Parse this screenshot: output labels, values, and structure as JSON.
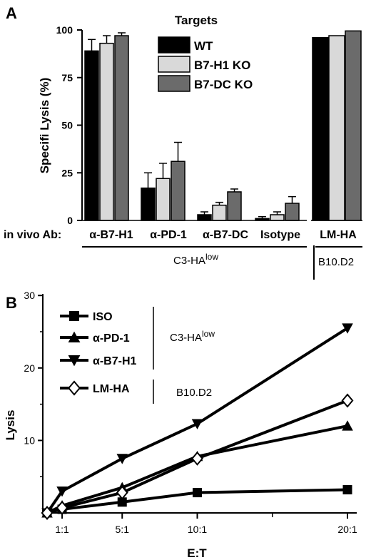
{
  "chart_data": [
    {
      "type": "bar",
      "panel_label": "A",
      "ylabel": "Specifi Lysis (%)",
      "yticks": [
        0,
        25,
        50,
        75,
        100
      ],
      "ylim": [
        0,
        100
      ],
      "legend_title": "Targets",
      "legend_placement": "top-center",
      "groups_prefix": "in vivo Ab:",
      "series": [
        {
          "name": "WT",
          "color": "#000000"
        },
        {
          "name": "B7-H1 KO",
          "color": "#d9d9d9"
        },
        {
          "name": "B7-DC KO",
          "color": "#6b6b6b"
        }
      ],
      "categories": [
        "α-B7-H1",
        "α-PD-1",
        "α-B7-DC",
        "Isotype"
      ],
      "values": [
        [
          89,
          93,
          97
        ],
        [
          17,
          22,
          31
        ],
        [
          3,
          8,
          15
        ],
        [
          1,
          3,
          9
        ]
      ],
      "errors": [
        [
          6,
          4,
          1.5
        ],
        [
          8,
          8,
          10
        ],
        [
          1.5,
          1.5,
          1.5
        ],
        [
          1,
          1.5,
          3.5
        ]
      ],
      "group_label": {
        "base": "C3-HA",
        "sup": "low"
      },
      "right_panel": {
        "category": "LM-HA",
        "values": [
          96,
          97,
          99.5
        ],
        "group_label": "B10.D2"
      }
    },
    {
      "type": "line",
      "panel_label": "B",
      "xlabel": "E:T",
      "ylabel": "Lysis",
      "xtick_labels": [
        "1:1",
        "5:1",
        "10:1",
        "20:1"
      ],
      "xticks": [
        1,
        5,
        10,
        20
      ],
      "yticks": [
        10,
        20,
        30
      ],
      "ylim": [
        0,
        30
      ],
      "x": [
        0,
        1,
        5,
        10,
        20
      ],
      "series": [
        {
          "name": "ISO",
          "marker": "square",
          "values": [
            0,
            0.5,
            1.5,
            2.8,
            3.2
          ]
        },
        {
          "name": "α-PD-1",
          "marker": "triangle-up",
          "values": [
            0,
            1,
            3.5,
            7.8,
            12
          ]
        },
        {
          "name": "α-B7-H1",
          "marker": "triangle-down",
          "values": [
            0,
            3,
            7.5,
            12.3,
            25.5
          ]
        },
        {
          "name": "LM-HA",
          "marker": "diamond-open",
          "values": [
            0,
            0.7,
            2.8,
            7.5,
            15.5
          ]
        }
      ],
      "legend_group_labels": [
        {
          "base": "C3-HA",
          "sup": "low"
        },
        {
          "base": "B10.D2",
          "sup": ""
        }
      ]
    }
  ]
}
